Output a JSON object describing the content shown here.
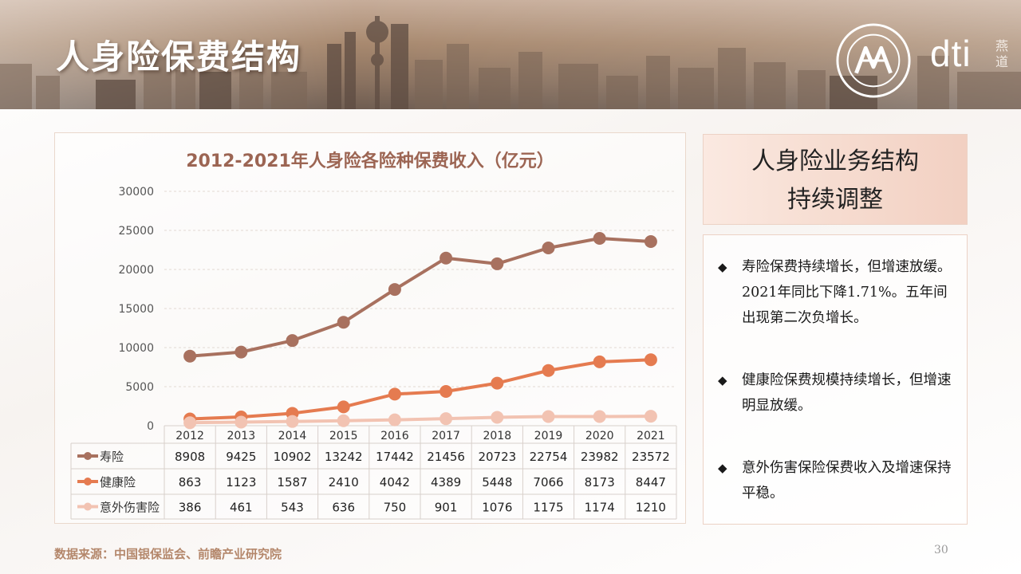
{
  "header": {
    "title": "人身险保费结构",
    "logo_text": "dti",
    "logo_sub": "燕道"
  },
  "chart_data": {
    "type": "line",
    "title": "2012-2021年人身险各险种保费收入（亿元）",
    "categories": [
      "2012",
      "2013",
      "2014",
      "2015",
      "2016",
      "2017",
      "2018",
      "2019",
      "2020",
      "2021"
    ],
    "series": [
      {
        "name": "寿险",
        "color": "#a8715f",
        "values": [
          8908,
          9425,
          10902,
          13242,
          17442,
          21456,
          20723,
          22754,
          23982,
          23572
        ]
      },
      {
        "name": "健康险",
        "color": "#e57b50",
        "values": [
          863,
          1123,
          1587,
          2410,
          4042,
          4389,
          5448,
          7066,
          8173,
          8447
        ]
      },
      {
        "name": "意外伤害险",
        "color": "#f2c3b2",
        "values": [
          386,
          461,
          543,
          636,
          750,
          901,
          1076,
          1175,
          1174,
          1210
        ]
      }
    ],
    "ylim": [
      0,
      30000
    ],
    "yticks": [
      0,
      5000,
      10000,
      15000,
      20000,
      25000,
      30000
    ],
    "grid": true,
    "legend": "data-table-bottom"
  },
  "sidebar": {
    "title_line1": "人身险业务结构",
    "title_line2": "持续调整",
    "bullet_mark": "◆",
    "bullets": [
      "寿险保费持续增长，但增速放缓。2021年同比下降1.71%。五年间出现第二次负增长。",
      "健康险保费规模持续增长，但增速明显放缓。",
      "意外伤害保险保费收入及增速保持平稳。"
    ]
  },
  "footer": {
    "source": "数据来源：中国银保监会、前瞻产业研究院",
    "page_number": "30"
  }
}
